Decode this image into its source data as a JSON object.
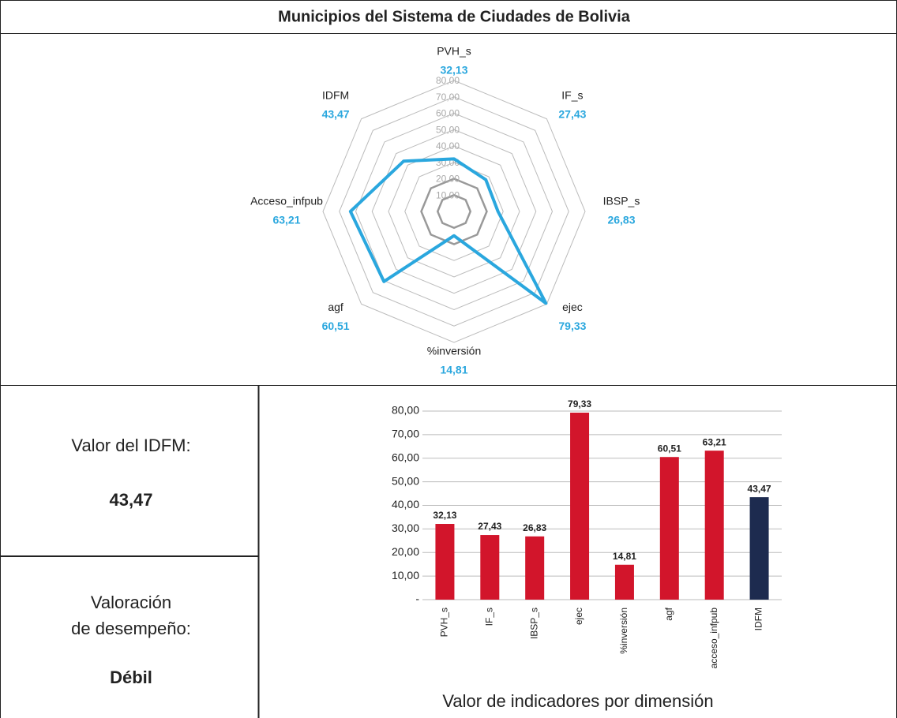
{
  "title": "Municipios del Sistema de Ciudades de Bolivia",
  "panels": {
    "idfm_label": "Valor del IDFM:",
    "idfm_value": "43,47",
    "rating_label": [
      "Valoración",
      "de desempeño:"
    ],
    "rating_value": "Débil"
  },
  "chart_data": [
    {
      "type": "radar",
      "categories": [
        "PVH_s",
        "IF_s",
        "IBSP_s",
        "ejec",
        "%inversión",
        "agf",
        "Acceso_infpub",
        "IDFM"
      ],
      "values": [
        32.13,
        27.43,
        26.83,
        79.33,
        14.81,
        60.51,
        63.21,
        43.47
      ],
      "value_labels": [
        "32,13",
        "27,43",
        "26,83",
        "79,33",
        "14,81",
        "60,51",
        "63,21",
        "43,47"
      ],
      "color": "#2aa7de",
      "rlim": [
        0,
        80
      ],
      "rticks": [
        {
          "value": 10,
          "label": "10,00"
        },
        {
          "value": 20,
          "label": "20,00"
        },
        {
          "value": 30,
          "label": "30,00"
        },
        {
          "value": 40,
          "label": "40,00"
        },
        {
          "value": 50,
          "label": "50,00"
        },
        {
          "value": 60,
          "label": "60,00"
        },
        {
          "value": 70,
          "label": "70,00"
        },
        {
          "value": 80,
          "label": "80,00"
        }
      ],
      "grid": true
    },
    {
      "type": "bar",
      "title": "Valor de indicadores por dimensión",
      "categories": [
        "PVH_s",
        "IF_s",
        "IBSP_s",
        "ejec",
        "%inversión",
        "agf",
        "acceso_infpub",
        "IDFM"
      ],
      "values": [
        32.13,
        27.43,
        26.83,
        79.33,
        14.81,
        60.51,
        63.21,
        43.47
      ],
      "value_labels": [
        "32,13",
        "27,43",
        "26,83",
        "79,33",
        "14,81",
        "60,51",
        "63,21",
        "43,47"
      ],
      "colors": [
        "#d2152b",
        "#d2152b",
        "#d2152b",
        "#d2152b",
        "#d2152b",
        "#d2152b",
        "#d2152b",
        "#1d2b4f"
      ],
      "ylim": [
        0,
        80
      ],
      "yticks": [
        {
          "value": 0,
          "label": "-"
        },
        {
          "value": 10,
          "label": "10,00"
        },
        {
          "value": 20,
          "label": "20,00"
        },
        {
          "value": 30,
          "label": "30,00"
        },
        {
          "value": 40,
          "label": "40,00"
        },
        {
          "value": 50,
          "label": "50,00"
        },
        {
          "value": 60,
          "label": "60,00"
        },
        {
          "value": 70,
          "label": "70,00"
        },
        {
          "value": 80,
          "label": "80,00"
        }
      ],
      "grid": true
    }
  ]
}
